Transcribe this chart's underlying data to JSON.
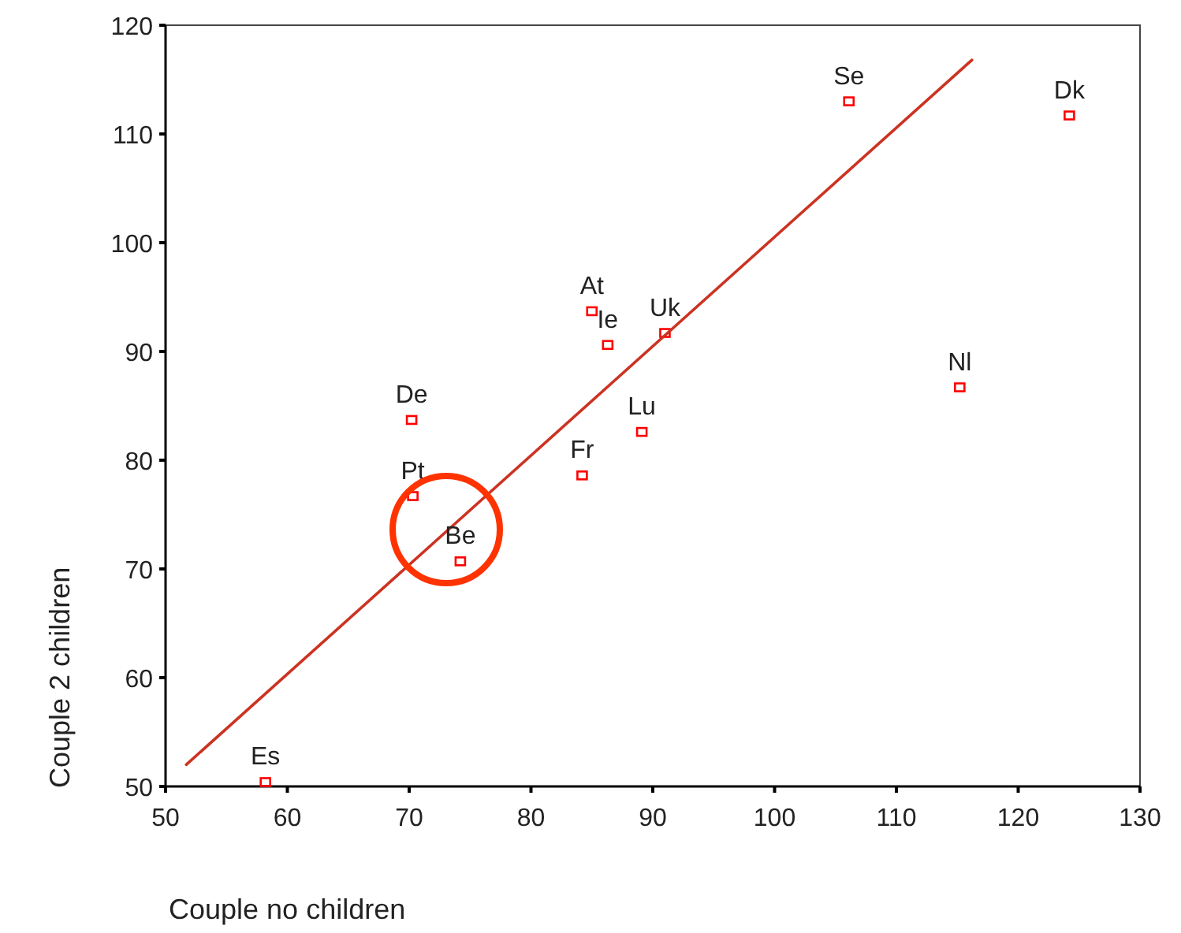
{
  "chart_data": {
    "type": "scatter",
    "xlabel": "Couple no children",
    "ylabel": "Couple 2 children",
    "xlim": [
      50,
      130
    ],
    "xticks": [
      50,
      60,
      70,
      80,
      90,
      100,
      110,
      120,
      130
    ],
    "ylim": [
      50,
      120
    ],
    "yticks": [
      50,
      60,
      70,
      80,
      90,
      100,
      110,
      120
    ],
    "grid": false,
    "series": [
      {
        "color": "#ff0000",
        "marker": "square",
        "x": [
          58.2,
          70.3,
          74.2,
          70.2,
          84.2,
          85.0,
          86.3,
          89.1,
          91.0,
          106.1,
          124.2,
          115.2
        ],
        "values": [
          50.4,
          76.7,
          70.7,
          83.7,
          78.6,
          93.7,
          90.6,
          82.6,
          91.7,
          113.0,
          111.7,
          86.7
        ]
      },
      {
        "type": "line",
        "color": "#cc3322",
        "marker": "none",
        "line_style": "solid",
        "x": [
          51.7,
          116.2
        ],
        "values": [
          52.0,
          116.8
        ]
      }
    ],
    "annotations": [
      {
        "text": "Es",
        "x": 58.2,
        "y": 50.4
      },
      {
        "text": "Pt",
        "x": 70.3,
        "y": 76.7
      },
      {
        "text": "Be",
        "x": 74.2,
        "y": 70.7
      },
      {
        "text": "De",
        "x": 70.2,
        "y": 83.7
      },
      {
        "text": "Fr",
        "x": 84.2,
        "y": 78.6
      },
      {
        "text": "At",
        "x": 85.0,
        "y": 93.7
      },
      {
        "text": "Ie",
        "x": 86.3,
        "y": 90.6
      },
      {
        "text": "Lu",
        "x": 89.1,
        "y": 82.6
      },
      {
        "text": "Uk",
        "x": 91.0,
        "y": 91.7
      },
      {
        "text": "Se",
        "x": 106.1,
        "y": 113.0
      },
      {
        "text": "Dk",
        "x": 124.2,
        "y": 111.7
      },
      {
        "text": "Nl",
        "x": 115.2,
        "y": 86.7
      }
    ]
  }
}
